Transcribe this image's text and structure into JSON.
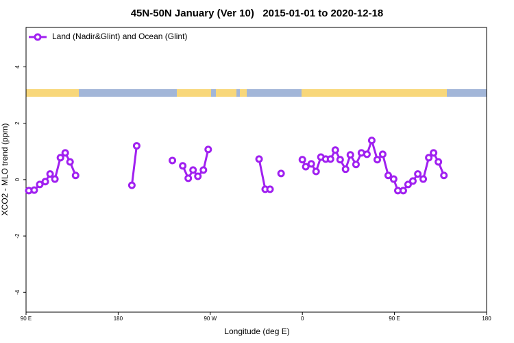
{
  "chart_data": {
    "type": "line",
    "title": "45N-50N January (Ver 10)   2015-01-01 to 2020-12-18",
    "xlabel": "Longitude (deg E)",
    "ylabel": "XCO2 - MLO trend (ppm)",
    "xlim": [
      90,
      540
    ],
    "ylim": [
      -4.7,
      5.4
    ],
    "xticks": [
      {
        "value": 90,
        "label": "90 E"
      },
      180,
      {
        "value": 270,
        "label": "90 W"
      },
      {
        "value": 360,
        "label": "0"
      },
      {
        "value": 450,
        "label": "90 E"
      },
      {
        "value": 540,
        "label": "180"
      }
    ],
    "yticks": [
      -4,
      -2,
      0,
      2,
      4
    ],
    "legend": "top-left",
    "x": [
      92.7,
      98.0,
      103.4,
      108.8,
      113.5,
      118.2,
      123.6,
      128.3,
      133.0,
      138.4,
      null,
      193.4,
      198.1,
      null,
      233.0,
      null,
      243.1,
      248.5,
      253.2,
      257.9,
      263.3,
      268.0,
      null,
      317.7,
      323.7,
      328.4,
      null,
      339.2,
      null,
      360.0,
      363.3,
      368.7,
      373.4,
      378.1,
      382.8,
      387.5,
      392.2,
      396.9,
      402.2,
      406.9,
      412.4,
      417.7,
      423.1,
      427.8,
      433.2,
      438.5,
      443.9,
      449.2,
      453.3,
      458.6,
      463.3,
      468.0,
      472.8,
      478.1,
      483.5,
      488.2,
      492.9,
      498.3
    ],
    "series": [
      {
        "name": "Land (Nadir&Glint) and Ocean (Glint)",
        "color": "#a020f0",
        "values": [
          -0.39,
          -0.37,
          -0.17,
          -0.07,
          0.2,
          0.02,
          0.78,
          0.95,
          0.63,
          0.15,
          null,
          -0.2,
          1.2,
          null,
          0.68,
          null,
          0.49,
          0.05,
          0.34,
          0.12,
          0.34,
          1.07,
          null,
          0.73,
          -0.34,
          -0.34,
          null,
          0.22,
          null,
          0.71,
          0.46,
          0.56,
          0.29,
          0.8,
          0.73,
          0.73,
          1.05,
          0.71,
          0.37,
          0.88,
          0.54,
          0.95,
          0.9,
          1.39,
          0.71,
          0.9,
          0.15,
          0.02,
          -0.39,
          -0.39,
          -0.17,
          -0.05,
          0.2,
          0.02,
          0.78,
          0.95,
          0.63,
          0.15
        ]
      }
    ]
  }
}
